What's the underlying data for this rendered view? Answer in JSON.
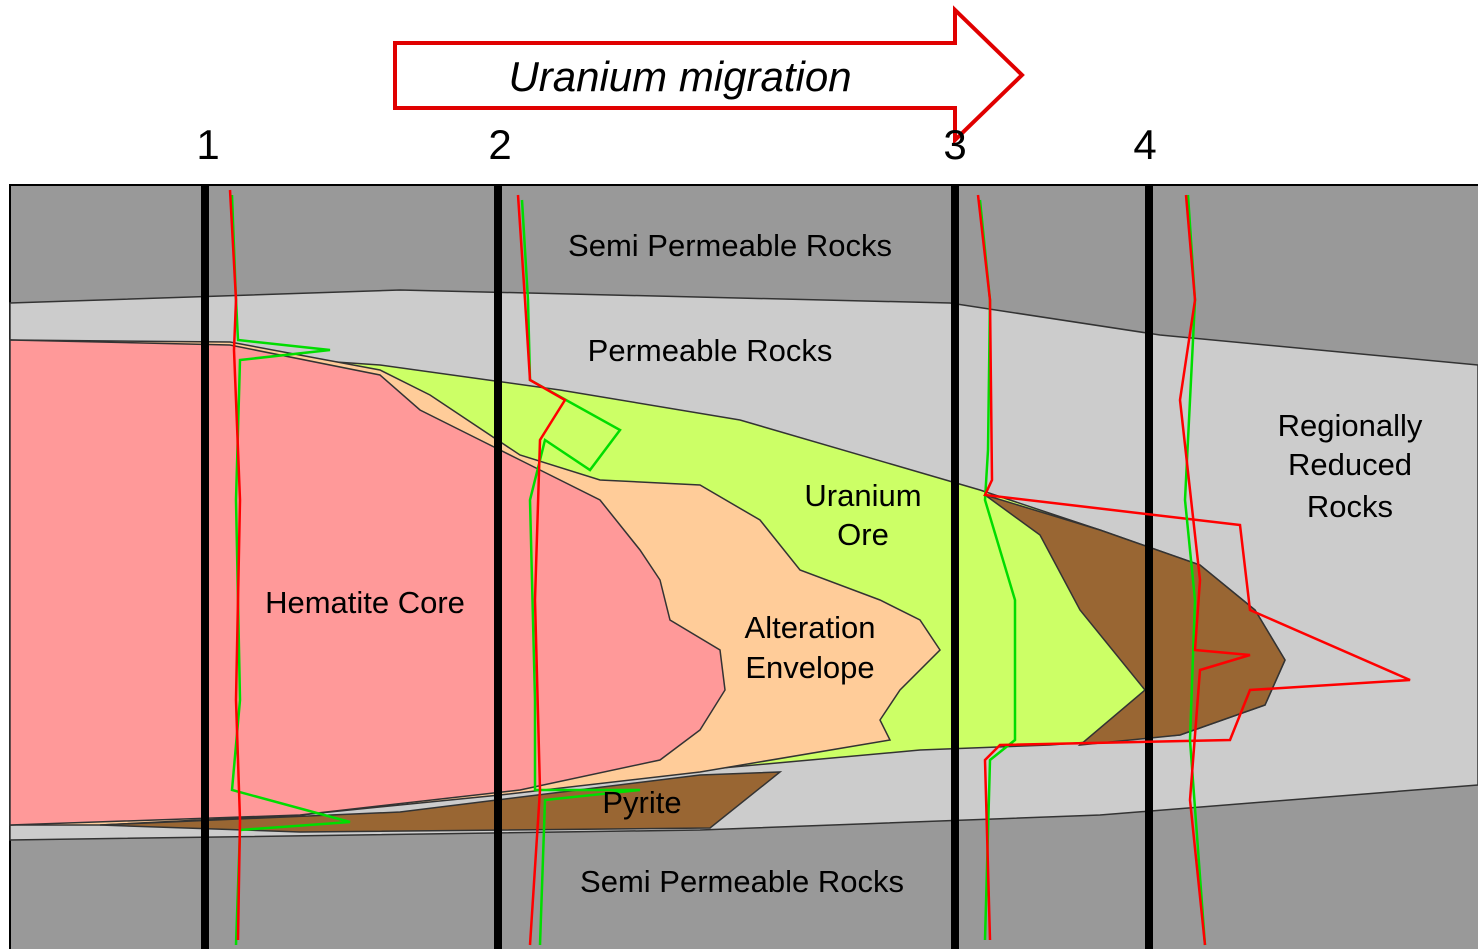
{
  "arrow": {
    "label": "Uranium migration"
  },
  "wells": [
    "1",
    "2",
    "3",
    "4"
  ],
  "zones": [
    {
      "lines": [
        "Semi Permeable Rocks"
      ]
    },
    {
      "lines": [
        "Permeable Rocks"
      ]
    },
    {
      "lines": [
        "Regionally",
        "Reduced",
        "Rocks"
      ]
    },
    {
      "lines": [
        "Uranium",
        "Ore"
      ]
    },
    {
      "lines": [
        "Hematite Core"
      ]
    },
    {
      "lines": [
        "Alteration",
        "Envelope"
      ]
    },
    {
      "lines": [
        "Pyrite"
      ]
    },
    {
      "lines": [
        "Semi Permeable Rocks"
      ]
    }
  ]
}
